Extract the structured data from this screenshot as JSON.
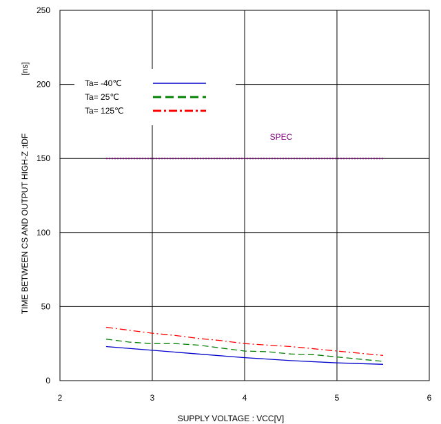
{
  "chart_data": {
    "type": "line",
    "xlabel": "SUPPLY VOLTAGE : VCC[V]",
    "ylabel": "TIME BETWEEN CS AND OUTPUT HIGH-Z :tDF",
    "yunit": "[ns]",
    "xlim": [
      2,
      6
    ],
    "ylim": [
      0,
      250
    ],
    "xticks": [
      "2",
      "3",
      "4",
      "5",
      "6"
    ],
    "yticks": [
      "0",
      "50",
      "100",
      "150",
      "200",
      "250"
    ],
    "grid": true,
    "legend_position": "top-left",
    "colors": {
      "blue": "#0000cc",
      "green": "#008000",
      "red": "#ff0000",
      "spec": "#800080"
    },
    "series": [
      {
        "name": "Ta= -40℃",
        "style": "solid",
        "x": [
          2.5,
          3.0,
          3.5,
          4.0,
          4.5,
          5.0,
          5.5
        ],
        "y": [
          23,
          20.5,
          18,
          15.5,
          13.5,
          12,
          11
        ]
      },
      {
        "name": "Ta=  25℃",
        "style": "dashed",
        "x": [
          2.5,
          2.75,
          3.0,
          3.25,
          3.5,
          3.75,
          4.0,
          4.25,
          4.5,
          4.75,
          5.0,
          5.25,
          5.5
        ],
        "y": [
          28,
          26,
          25,
          25,
          24,
          22,
          20,
          19.5,
          18,
          17.5,
          16,
          14.5,
          13
        ]
      },
      {
        "name": "Ta= 125℃",
        "style": "dashdot",
        "x": [
          2.5,
          2.75,
          3.0,
          3.25,
          3.5,
          3.75,
          4.0,
          4.25,
          4.5,
          4.75,
          5.0,
          5.25,
          5.5
        ],
        "y": [
          36,
          34,
          32,
          30.5,
          28.5,
          27,
          25,
          24,
          23,
          21.5,
          20,
          18.5,
          17
        ]
      }
    ],
    "spec": {
      "label": "SPEC",
      "x": [
        2.5,
        5.5
      ],
      "y": 150
    }
  }
}
